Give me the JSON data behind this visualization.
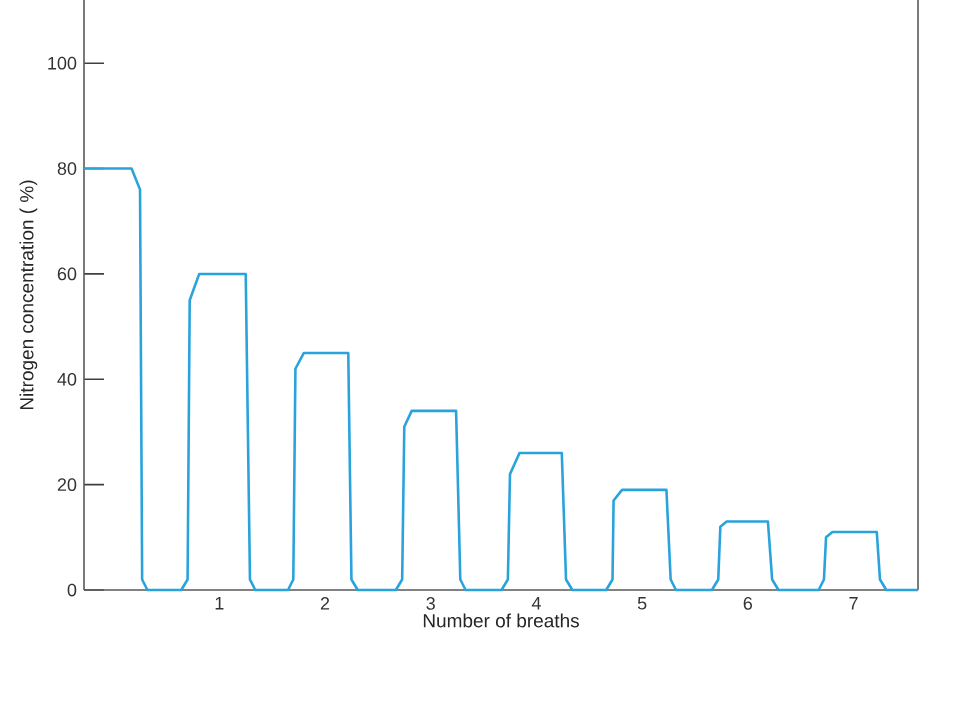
{
  "chart_data": {
    "type": "line",
    "xlabel": "Number of breaths",
    "ylabel": "Nitrogen concentration ( %)",
    "xlim": [
      -0.28,
      7.61
    ],
    "ylim": [
      0,
      112
    ],
    "xticks": [
      1,
      2,
      3,
      4,
      5,
      6,
      7
    ],
    "yticks": [
      0,
      20,
      40,
      60,
      80,
      100
    ],
    "marker": "none",
    "line_style": "solid",
    "color": "#2aa3dc",
    "x": [
      -0.28,
      0.17,
      0.25,
      0.27,
      0.32,
      0.64,
      0.7,
      0.72,
      0.81,
      1.25,
      1.29,
      1.34,
      1.65,
      1.7,
      1.72,
      1.8,
      2.22,
      2.25,
      2.31,
      2.67,
      2.73,
      2.75,
      2.82,
      3.24,
      3.28,
      3.33,
      3.67,
      3.73,
      3.75,
      3.84,
      4.24,
      4.28,
      4.34,
      4.66,
      4.72,
      4.73,
      4.81,
      5.23,
      5.27,
      5.32,
      5.66,
      5.72,
      5.74,
      5.8,
      6.19,
      6.23,
      6.29,
      6.67,
      6.72,
      6.74,
      6.8,
      7.22,
      7.25,
      7.31,
      7.61
    ],
    "values": [
      80,
      80,
      76,
      2,
      0,
      0,
      2,
      55,
      60,
      60,
      2,
      0,
      0,
      2,
      42,
      45,
      45,
      2,
      0,
      0,
      2,
      31,
      34,
      34,
      2,
      0,
      0,
      2,
      22,
      26,
      26,
      2,
      0,
      0,
      2,
      17,
      19,
      19,
      2,
      0,
      0,
      2,
      12,
      13,
      13,
      2,
      0,
      0,
      2,
      10,
      11,
      11,
      2,
      0,
      0
    ]
  }
}
